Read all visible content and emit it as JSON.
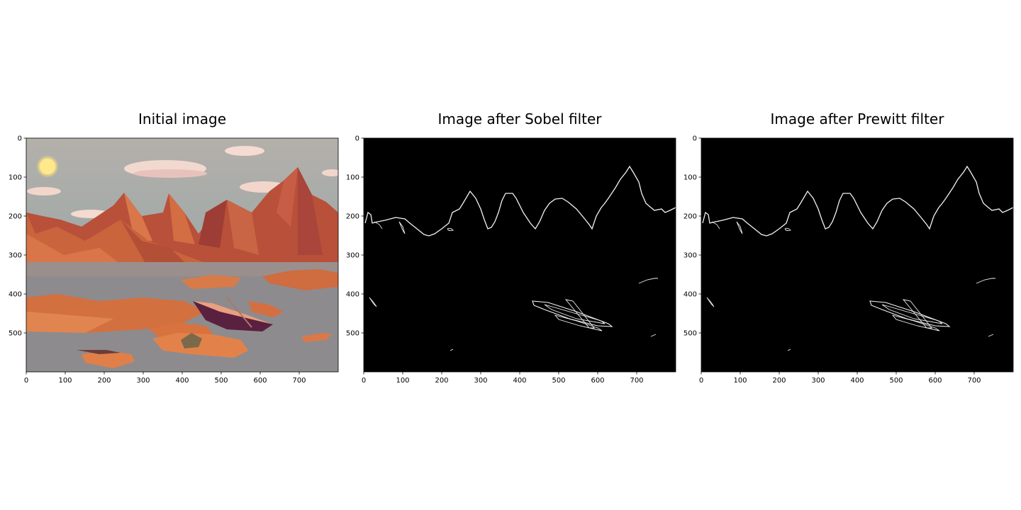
{
  "chart_data": [
    {
      "type": "image",
      "title": "Initial image",
      "content": "low-poly landscape: orange mountains, sun, clouds, lake with rocks and a boat",
      "xticks": [
        "0",
        "100",
        "200",
        "300",
        "400",
        "500",
        "600",
        "700"
      ],
      "yticks": [
        "0",
        "100",
        "200",
        "300",
        "400",
        "500"
      ],
      "xlim": [
        0,
        800
      ],
      "ylim": [
        600,
        0
      ]
    },
    {
      "type": "image",
      "title": "Image after Sobel filter",
      "content": "edge map: white mountain ridge outline and boat edges on black background",
      "xticks": [
        "0",
        "100",
        "200",
        "300",
        "400",
        "500",
        "600",
        "700"
      ],
      "yticks": [
        "0",
        "100",
        "200",
        "300",
        "400",
        "500"
      ],
      "xlim": [
        0,
        800
      ],
      "ylim": [
        600,
        0
      ]
    },
    {
      "type": "image",
      "title": "Image after Prewitt filter",
      "content": "edge map: white mountain ridge outline and boat edges on black background",
      "xticks": [
        "0",
        "100",
        "200",
        "300",
        "400",
        "500",
        "600",
        "700"
      ],
      "yticks": [
        "0",
        "100",
        "200",
        "300",
        "400",
        "500"
      ],
      "xlim": [
        0,
        800
      ],
      "ylim": [
        600,
        0
      ]
    }
  ],
  "colors": {
    "sky_top": "#b3b1ab",
    "sky_bottom": "#8fa2a6",
    "mountain": "#c65a35",
    "mountain_shadow": "#8c3a2a",
    "water": "#8f8c8f",
    "sun": "#ffe98a",
    "cloud": "#f4d7cd",
    "edge_bg": "#000000",
    "edge_line": "#f2f2f2"
  }
}
